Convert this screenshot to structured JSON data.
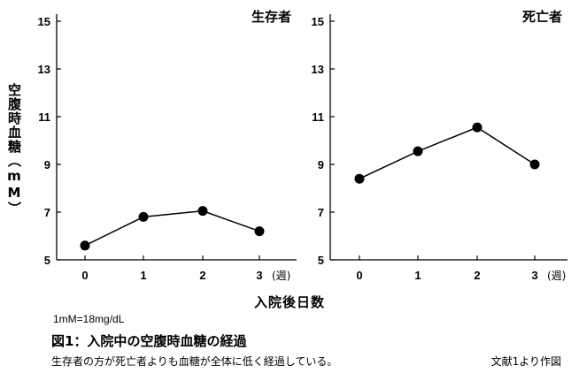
{
  "figure": {
    "ylabel": "空腹時血糖（mM）",
    "xlabel": "入院後日数",
    "unit_note": "1mM=18mg/dL",
    "title": "図1：入院中の空腹時血糖の経過",
    "caption": "生存者の方が死亡者よりも血糖が全体に低く経過している。",
    "source": "文献1より作図"
  },
  "chart_data": [
    {
      "type": "line",
      "title": "生存者",
      "x": [
        0,
        1,
        2,
        3
      ],
      "values": [
        5.6,
        6.8,
        7.05,
        6.2
      ],
      "ylim": [
        5,
        15
      ],
      "yticks": [
        5,
        7,
        9,
        11,
        13,
        15
      ],
      "xticks": [
        "0",
        "1",
        "2",
        "3"
      ],
      "x_unit": "(週)",
      "color": "#000000"
    },
    {
      "type": "line",
      "title": "死亡者",
      "x": [
        0,
        1,
        2,
        3
      ],
      "values": [
        8.4,
        9.55,
        10.55,
        9.0
      ],
      "ylim": [
        5,
        15
      ],
      "yticks": [
        5,
        7,
        9,
        11,
        13,
        15
      ],
      "xticks": [
        "0",
        "1",
        "2",
        "3"
      ],
      "x_unit": "(週)",
      "color": "#000000"
    }
  ]
}
